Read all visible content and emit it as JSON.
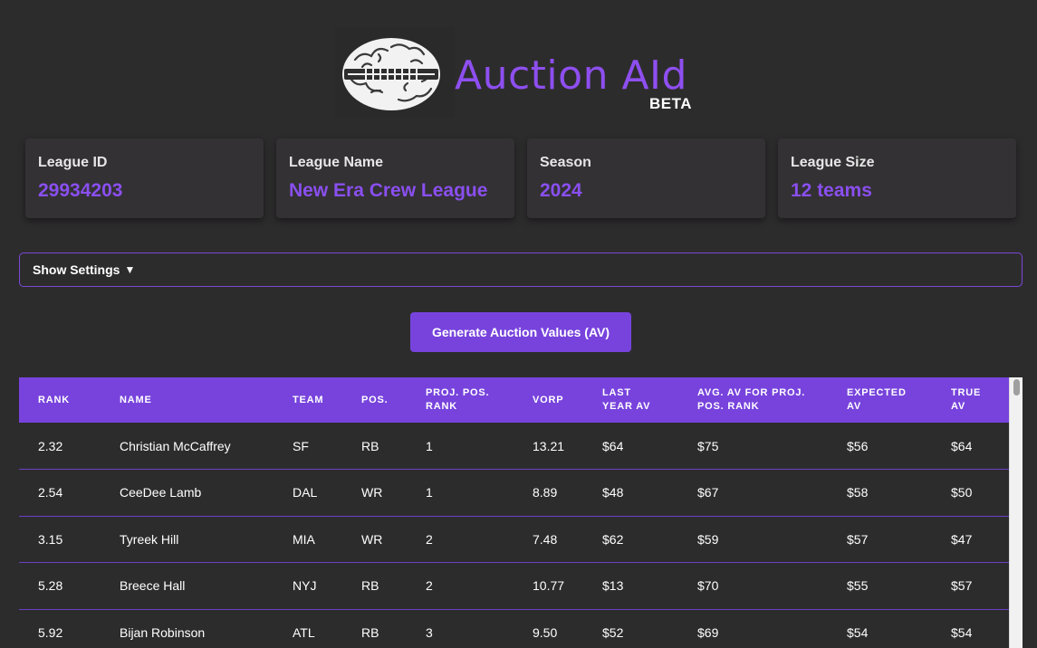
{
  "header": {
    "title": "Auction AId",
    "badge": "BETA"
  },
  "cards": [
    {
      "label": "League ID",
      "value": "29934203"
    },
    {
      "label": "League Name",
      "value": "New Era Crew League"
    },
    {
      "label": "Season",
      "value": "2024"
    },
    {
      "label": "League Size",
      "value": "12 teams"
    }
  ],
  "settings": {
    "label": "Show Settings",
    "arrow": "▼"
  },
  "generate_button": "Generate Auction Values (AV)",
  "table": {
    "headers": [
      {
        "line1": "RANK",
        "line2": ""
      },
      {
        "line1": "NAME",
        "line2": ""
      },
      {
        "line1": "TEAM",
        "line2": ""
      },
      {
        "line1": "POS.",
        "line2": ""
      },
      {
        "line1": "PROJ. POS.",
        "line2": "RANK"
      },
      {
        "line1": "VORP",
        "line2": ""
      },
      {
        "line1": "LAST",
        "line2": "YEAR AV"
      },
      {
        "line1": "AVG. AV FOR PROJ.",
        "line2": "POS. RANK"
      },
      {
        "line1": "EXPECTED",
        "line2": "AV"
      },
      {
        "line1": "TRUE",
        "line2": "AV"
      }
    ],
    "rows": [
      [
        "2.32",
        "Christian McCaffrey",
        "SF",
        "RB",
        "1",
        "13.21",
        "$64",
        "$75",
        "$56",
        "$64"
      ],
      [
        "2.54",
        "CeeDee Lamb",
        "DAL",
        "WR",
        "1",
        "8.89",
        "$48",
        "$67",
        "$58",
        "$50"
      ],
      [
        "3.15",
        "Tyreek Hill",
        "MIA",
        "WR",
        "2",
        "7.48",
        "$62",
        "$59",
        "$57",
        "$47"
      ],
      [
        "5.28",
        "Breece Hall",
        "NYJ",
        "RB",
        "2",
        "10.77",
        "$13",
        "$70",
        "$55",
        "$57"
      ],
      [
        "5.92",
        "Bijan Robinson",
        "ATL",
        "RB",
        "3",
        "9.50",
        "$52",
        "$69",
        "$54",
        "$54"
      ]
    ]
  },
  "colors": {
    "background": "#2d2c2d",
    "accent": "#7743dc",
    "accent_text": "#8a4ff0",
    "card": "#333133"
  }
}
